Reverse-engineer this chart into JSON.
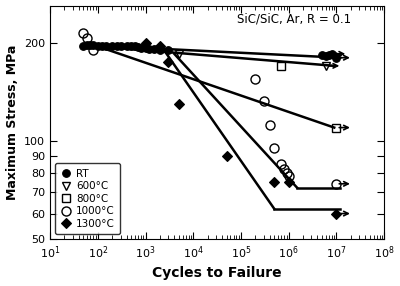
{
  "title": "SiC/SiC, Ar, R = 0.1",
  "xlabel": "Cycles to Failure",
  "ylabel": "Maximum Stress, MPa",
  "xlim": [
    10,
    100000000.0
  ],
  "ylim": [
    50,
    260
  ],
  "yticks": [
    50,
    60,
    70,
    80,
    90,
    100,
    200
  ],
  "yticklabels": [
    "50",
    "60",
    "70",
    "80",
    "90",
    "100",
    "200"
  ],
  "xticks": [
    10,
    100,
    1000,
    10000,
    100000,
    1000000,
    10000000,
    100000000
  ],
  "rt_x": [
    50,
    60,
    70,
    80,
    100,
    120,
    150,
    200,
    250,
    300,
    400,
    500,
    600,
    700,
    800,
    1000,
    1200,
    1500,
    2000,
    3000
  ],
  "rt_y": [
    196,
    197,
    197,
    197,
    196,
    196,
    196,
    196,
    196,
    195,
    195,
    195,
    195,
    194,
    193,
    193,
    192,
    191,
    190,
    190
  ],
  "rt_runout_x": [
    5000000.0,
    6000000.0,
    7000000.0,
    8000000.0,
    10000000.0
  ],
  "rt_runout_y": [
    183,
    182,
    183,
    185,
    180
  ],
  "c600_x": [
    5000
  ],
  "c600_y": [
    185
  ],
  "c600_runout_x": [
    6000000.0
  ],
  "c600_runout_y": [
    170
  ],
  "c800_x": [
    700000.0
  ],
  "c800_y": [
    170
  ],
  "c800_runout_x": [
    10000000.0
  ],
  "c800_runout_y": [
    110
  ],
  "c1000_x": [
    50,
    60,
    80,
    200000.0,
    300000.0,
    400000.0,
    500000.0,
    700000.0,
    800000.0,
    900000.0,
    1000000.0
  ],
  "c1000_y": [
    215,
    207,
    190,
    155,
    133,
    112,
    95,
    85,
    82,
    80,
    78
  ],
  "c1000_runout_x": [
    10000000.0
  ],
  "c1000_runout_y": [
    74
  ],
  "c1300_x": [
    1000,
    2000,
    3000,
    5000,
    50000.0,
    500000.0,
    1000000.0
  ],
  "c1300_y": [
    200,
    195,
    175,
    130,
    90,
    75,
    75
  ],
  "c1300_runout_x": [
    10000000.0
  ],
  "c1300_runout_y": [
    60
  ],
  "line_rt": {
    "x": [
      50,
      12000000.0
    ],
    "y": [
      197,
      180
    ]
  },
  "line_600": {
    "x": [
      100,
      9000000.0
    ],
    "y": [
      195,
      170
    ]
  },
  "line_800": {
    "x": [
      100,
      9000000.0
    ],
    "y": [
      195,
      110
    ]
  },
  "line_1000_drop": {
    "x": [
      4000,
      1500000.0
    ],
    "y": [
      185,
      72
    ]
  },
  "line_1000_flat": {
    "x": [
      1500000.0,
      12000000.0
    ],
    "y": [
      72,
      72
    ]
  },
  "line_1300_drop": {
    "x": [
      2000,
      500000.0
    ],
    "y": [
      198,
      62
    ]
  },
  "line_1300_flat": {
    "x": [
      500000.0,
      12000000.0
    ],
    "y": [
      62,
      62
    ]
  },
  "ms_filled": 5.5,
  "ms_open": 6.5,
  "ms_open_small": 5.5,
  "lw": 1.8
}
